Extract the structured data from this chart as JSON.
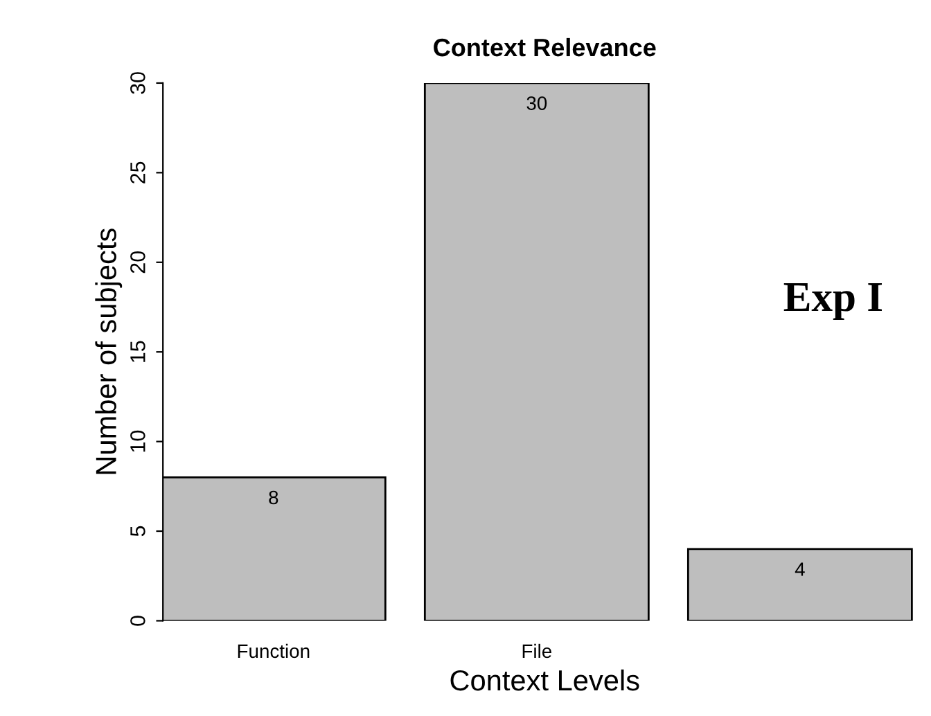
{
  "chart_data": {
    "type": "bar",
    "title": "Context Relevance",
    "xlabel": "Context Levels",
    "ylabel": "Number of subjects",
    "categories": [
      "Function",
      "File",
      null
    ],
    "values": [
      8,
      30,
      4
    ],
    "color": "#bebebe",
    "ylim": [
      0,
      30
    ],
    "yticks": [
      0,
      5,
      10,
      15,
      20,
      25,
      30
    ],
    "grid": false,
    "data_labels": true,
    "annotations": [
      "Exp I"
    ]
  }
}
